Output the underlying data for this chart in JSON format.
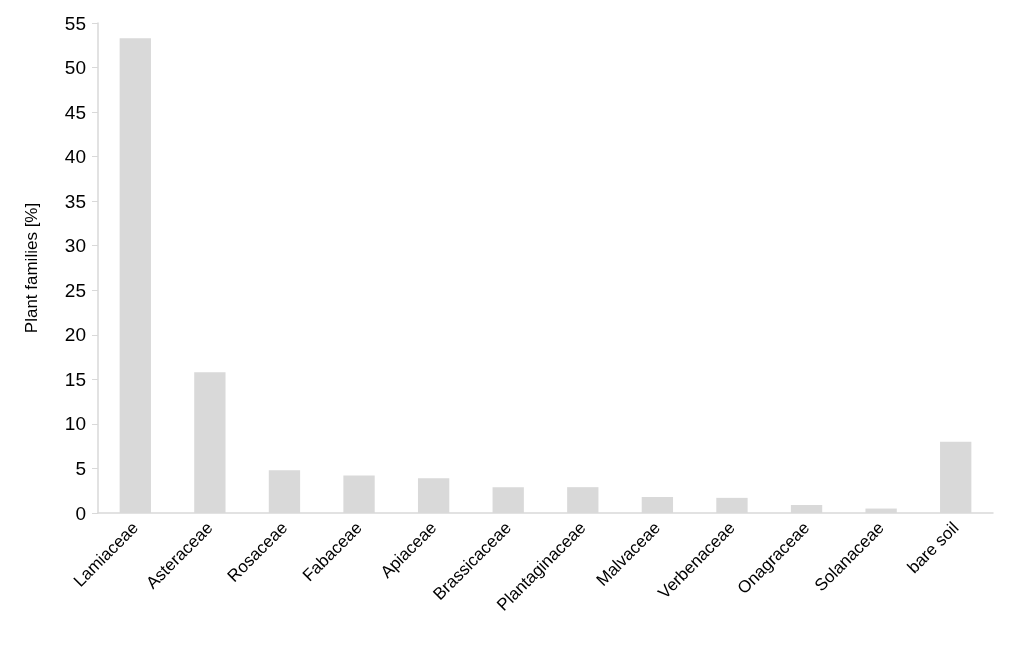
{
  "chart_data": {
    "type": "bar",
    "ylabel": "Plant families [%]",
    "categories": [
      "Lamiaceae",
      "Asteraceae",
      "Rosaceae",
      "Fabaceae",
      "Apiaceae",
      "Brassicaceae",
      "Plantaginaceae",
      "Malvaceae",
      "Verbenaceae",
      "Onagraceae",
      "Solanaceae",
      "bare soil"
    ],
    "values": [
      53.3,
      15.8,
      4.8,
      4.2,
      3.9,
      2.9,
      2.9,
      1.8,
      1.7,
      0.9,
      0.5,
      8.0
    ],
    "color": "#d9d9d9",
    "ylim": [
      0,
      55
    ],
    "yticks": [
      0,
      5,
      10,
      15,
      20,
      25,
      30,
      35,
      40,
      45,
      50,
      55
    ],
    "grid": false
  }
}
